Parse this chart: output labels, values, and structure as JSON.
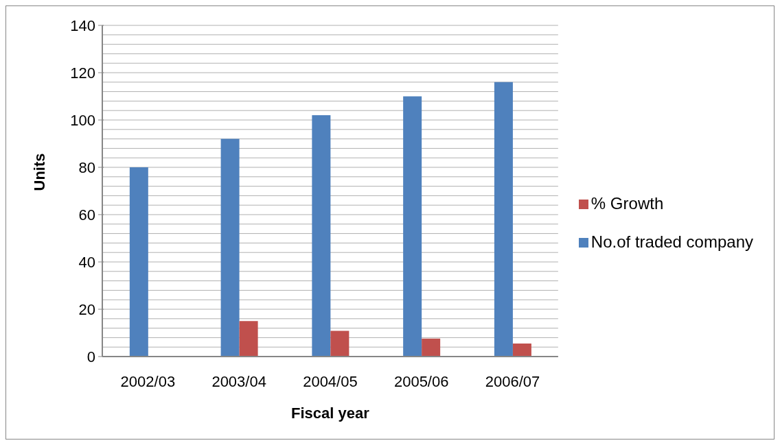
{
  "chart_data": {
    "type": "bar",
    "xlabel": "Fiscal year",
    "ylabel": "Units",
    "categories": [
      "2002/03",
      "2003/04",
      "2004/05",
      "2005/06",
      "2006/07"
    ],
    "series": [
      {
        "name": "No.of traded company",
        "color": "#4f81bd",
        "values": [
          80,
          92,
          102,
          110,
          116
        ]
      },
      {
        "name": "% Growth",
        "color": "#c0504d",
        "values": [
          null,
          15,
          10.9,
          7.6,
          5.5
        ]
      }
    ],
    "ylim": [
      0,
      140
    ],
    "yticks": [
      0,
      {
        "value": 4,
        "label": null
      },
      {
        "value": 8,
        "label": null
      },
      {
        "value": 12,
        "label": null
      },
      {
        "value": 16,
        "label": null
      },
      20,
      {
        "value": 24,
        "label": null
      },
      {
        "value": 28,
        "label": null
      },
      {
        "value": 32,
        "label": null
      },
      {
        "value": 36,
        "label": null
      },
      40,
      {
        "value": 44,
        "label": null
      },
      {
        "value": 48,
        "label": null
      },
      {
        "value": 52,
        "label": null
      },
      {
        "value": 56,
        "label": null
      },
      60,
      {
        "value": 64,
        "label": null
      },
      {
        "value": 68,
        "label": null
      },
      {
        "value": 72,
        "label": null
      },
      {
        "value": 76,
        "label": null
      },
      80,
      {
        "value": 84,
        "label": null
      },
      {
        "value": 88,
        "label": null
      },
      {
        "value": 92,
        "label": null
      },
      {
        "value": 96,
        "label": null
      },
      100,
      {
        "value": 104,
        "label": null
      },
      {
        "value": 108,
        "label": null
      },
      {
        "value": 112,
        "label": null
      },
      {
        "value": 116,
        "label": null
      },
      120,
      {
        "value": 124,
        "label": null
      },
      {
        "value": 128,
        "label": null
      },
      {
        "value": 132,
        "label": null
      },
      {
        "value": 136,
        "label": null
      },
      140
    ],
    "grid": "y",
    "legend": "right"
  }
}
